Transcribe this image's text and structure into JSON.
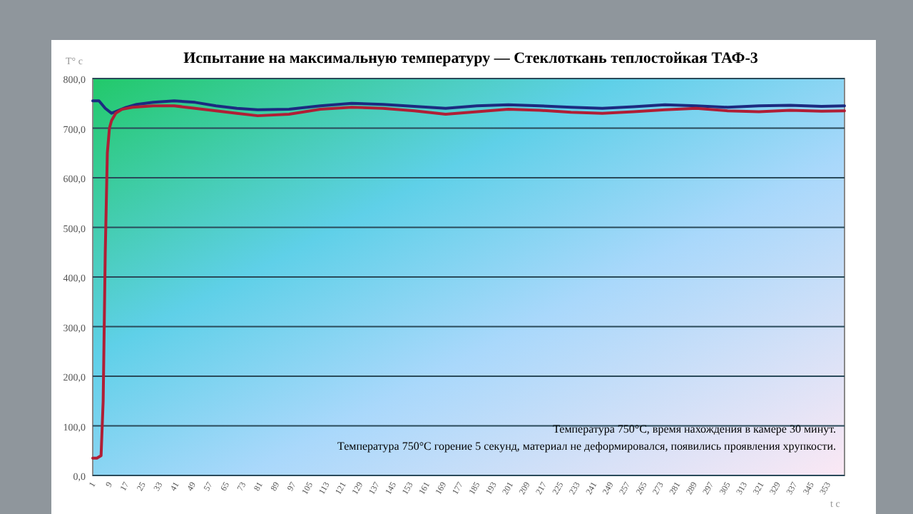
{
  "chart_data": {
    "type": "line",
    "title": "Испытание на максимальную температуру — Стеклоткань теплостойкая ТАФ-3",
    "ylabel": "T° c",
    "xlabel": "t c",
    "annotations": [
      "Температура 750°C, время нахождения в камере 30 минут.",
      "Температура 750°C горение  5 секунд, материал не деформировался, появились  проявления  хрупкости."
    ],
    "xlim": [
      1,
      361
    ],
    "xticks": [
      1,
      9,
      17,
      25,
      33,
      41,
      49,
      57,
      65,
      73,
      81,
      89,
      97,
      105,
      113,
      121,
      129,
      137,
      145,
      153,
      161,
      169,
      177,
      185,
      193,
      201,
      209,
      217,
      225,
      233,
      241,
      249,
      257,
      265,
      273,
      281,
      289,
      297,
      305,
      313,
      321,
      329,
      337,
      345,
      353
    ],
    "ylim": [
      0,
      800
    ],
    "yticks": [
      {
        "value": 0,
        "label": "0,0"
      },
      {
        "value": 100,
        "label": "100,0"
      },
      {
        "value": 200,
        "label": "200,0"
      },
      {
        "value": 300,
        "label": "300,0"
      },
      {
        "value": 400,
        "label": "400,0"
      },
      {
        "value": 500,
        "label": "500,0"
      },
      {
        "value": 600,
        "label": "600,0"
      },
      {
        "value": 700,
        "label": "700,0"
      },
      {
        "value": 800,
        "label": "800,0"
      }
    ],
    "grid": "y",
    "line_style": "solid",
    "marker": "none",
    "series": [
      {
        "color": "#1c2a80",
        "x": [
          1,
          4,
          7,
          10,
          13,
          17,
          22,
          30,
          40,
          50,
          60,
          70,
          80,
          95,
          110,
          125,
          140,
          155,
          170,
          185,
          200,
          215,
          230,
          245,
          260,
          275,
          290,
          305,
          320,
          335,
          350,
          361
        ],
        "values": [
          755,
          755,
          740,
          730,
          735,
          742,
          748,
          752,
          755,
          752,
          745,
          740,
          737,
          738,
          745,
          750,
          748,
          744,
          740,
          745,
          747,
          745,
          742,
          740,
          743,
          747,
          745,
          742,
          745,
          746,
          744,
          745
        ]
      },
      {
        "color": "#b01e35",
        "x": [
          1,
          3,
          5,
          6,
          7,
          8,
          9,
          10,
          12,
          15,
          20,
          30,
          40,
          50,
          60,
          70,
          80,
          95,
          110,
          125,
          140,
          155,
          170,
          185,
          200,
          215,
          230,
          245,
          260,
          275,
          290,
          305,
          320,
          335,
          350,
          361
        ],
        "values": [
          35,
          35,
          40,
          150,
          450,
          650,
          700,
          715,
          730,
          738,
          742,
          745,
          745,
          740,
          735,
          730,
          725,
          728,
          738,
          742,
          740,
          735,
          728,
          733,
          738,
          736,
          732,
          730,
          733,
          737,
          740,
          735,
          733,
          736,
          734,
          735
        ]
      }
    ]
  }
}
